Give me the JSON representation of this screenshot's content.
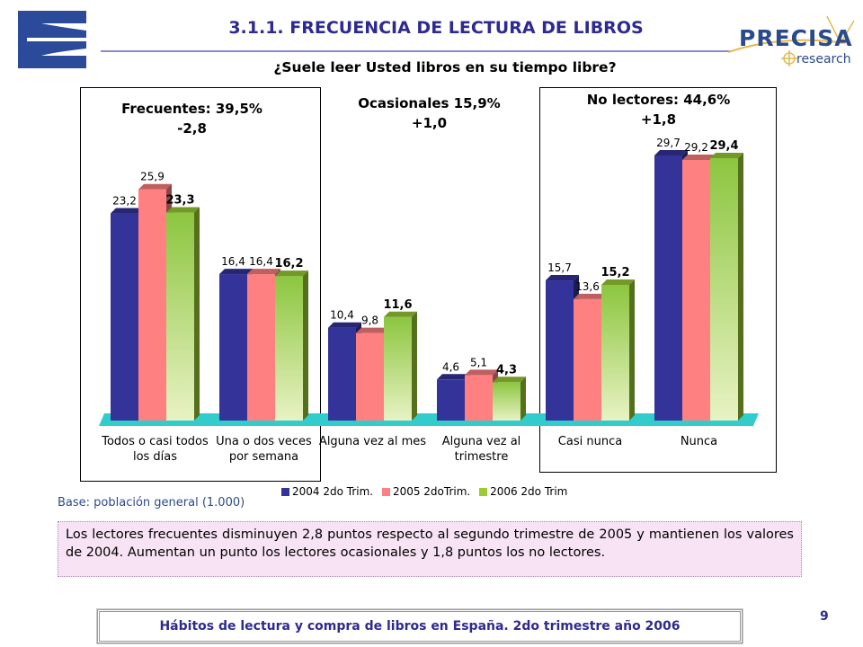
{
  "slide": {
    "title": "3.1.1.  FRECUENCIA DE LECTURA DE LIBROS",
    "question": "¿Suele leer Usted libros en su tiempo libre?",
    "brand_name": "PRECISA",
    "brand_sub": "research",
    "base_note": "Base: población general (1.000)",
    "summary": "Los lectores frecuentes disminuyen 2,8 puntos respecto al segundo trimestre de 2005 y mantienen los valores de 2004. Aumentan un punto los  lectores ocasionales y 1,8 puntos los no lectores.",
    "footer": "Hábitos de lectura y compra de libros en España. 2do trimestre año 2006",
    "page_number": "9"
  },
  "groups": {
    "frequent": {
      "line1": "Frecuentes: 39,5%",
      "line2": "-2,8"
    },
    "occasional": {
      "line1": "Ocasionales 15,9%",
      "line2": "+1,0"
    },
    "nonreaders": {
      "line1": "No lectores: 44,6%",
      "line2": "+1,8"
    }
  },
  "chart_data": {
    "type": "bar",
    "categories": [
      "Todos o casi todos los días",
      "Una o dos veces por semana",
      "Alguna vez al mes",
      "Alguna vez al trimestre",
      "Casi nunca",
      "Nunca"
    ],
    "series": [
      {
        "name": "2004 2do Trim.",
        "values": [
          23.2,
          16.4,
          10.4,
          4.6,
          15.7,
          29.7
        ],
        "labels": [
          "23,2",
          "16,4",
          "10,4",
          "4,6",
          "15,7",
          "29,7"
        ],
        "color": "#333399"
      },
      {
        "name": "2005 2doTrim.",
        "values": [
          25.9,
          16.4,
          9.8,
          5.1,
          13.6,
          29.2
        ],
        "labels": [
          "25,9",
          "16,4",
          "9,8",
          "5,1",
          "13,6",
          "29,2"
        ],
        "color": "#ff8080"
      },
      {
        "name": "2006 2do Trim",
        "values": [
          23.3,
          16.2,
          11.6,
          4.3,
          15.2,
          29.4
        ],
        "labels": [
          "23,3",
          "16,2",
          "11,6",
          "4,3",
          "15,2",
          "29,4"
        ],
        "color": "#99cc33"
      }
    ],
    "ylim": [
      0,
      30
    ],
    "legend_position": "bottom",
    "grid": false
  }
}
